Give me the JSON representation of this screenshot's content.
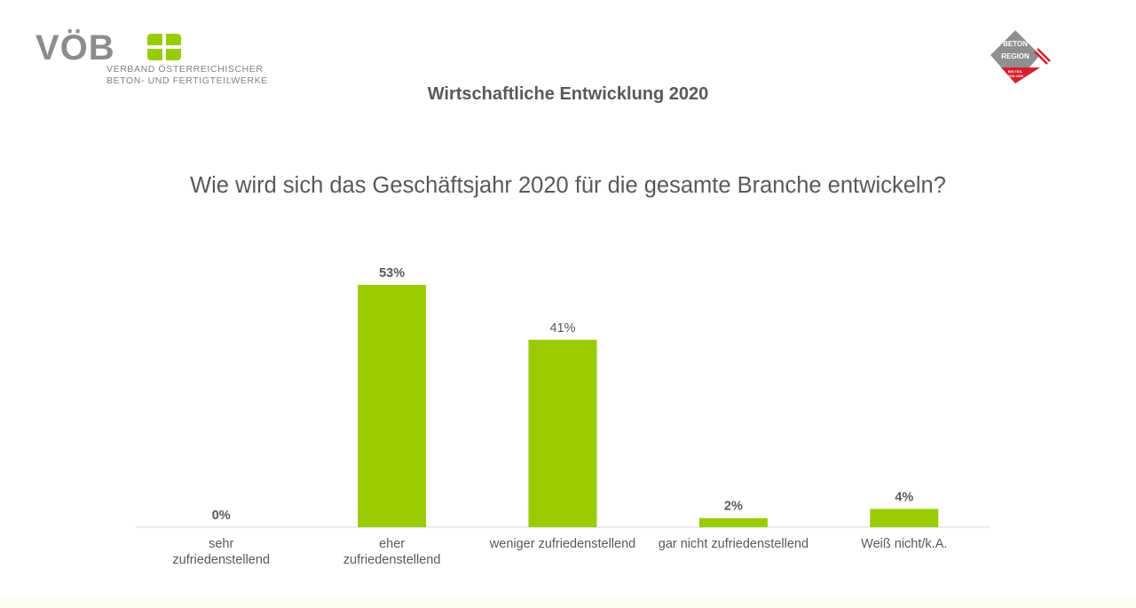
{
  "header": {
    "voeb_logo": {
      "letters": "VÖB",
      "subtitle_line1": "VERBAND ÖSTERREICHISCHER",
      "subtitle_line2": "BETON- UND FERTIGTEILWERKE"
    },
    "beton_logo": {
      "line1": "BETON",
      "line2": "REGION",
      "line3": "EIN TEIL",
      "line4": "VON UNS"
    }
  },
  "slide_title": "Wirtschaftliche Entwicklung 2020",
  "question": "Wie wird sich das Geschäftsjahr 2020 für die gesamte Branche entwickeln?",
  "colors": {
    "bar": "#99cc00",
    "text": "#595959",
    "axis": "#d9d9d9"
  },
  "chart_data": {
    "type": "bar",
    "title": "",
    "xlabel": "",
    "ylabel": "",
    "ylim": [
      0,
      60
    ],
    "grid": false,
    "categories": [
      [
        "sehr",
        "zufriedenstellend"
      ],
      [
        "eher",
        "zufriedenstellend"
      ],
      [
        "weniger zufriedenstellend"
      ],
      [
        "gar nicht zufriedenstellend"
      ],
      [
        "Weiß nicht/k.A."
      ]
    ],
    "values": [
      0,
      53,
      41,
      2,
      4
    ],
    "value_labels": [
      "0%",
      "53%",
      "41%",
      "2%",
      "4%"
    ],
    "value_label_bold": [
      true,
      true,
      false,
      true,
      true
    ]
  }
}
